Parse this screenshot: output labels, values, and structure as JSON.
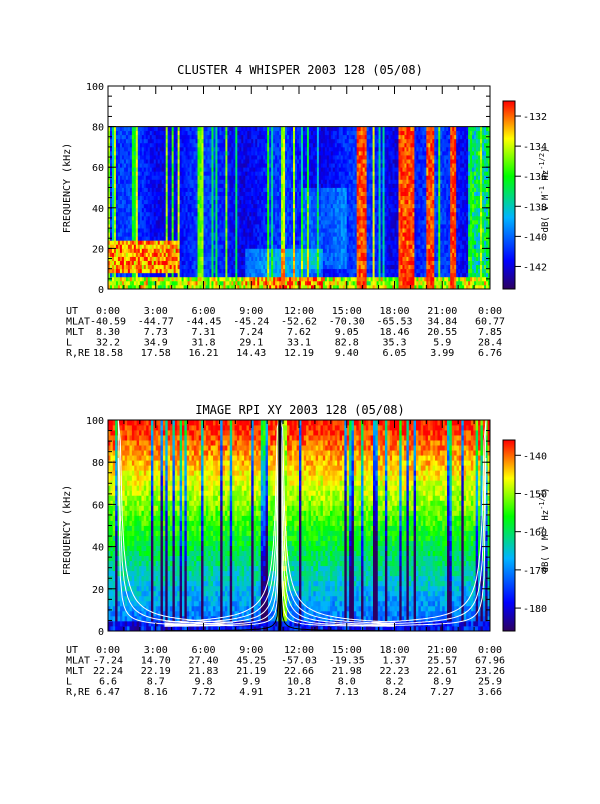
{
  "chart_data": [
    {
      "type": "heatmap",
      "title": "CLUSTER 4 WHISPER 2003 128 (05/08)",
      "ylabel": "FREQUENCY (kHz)",
      "ylim": [
        0,
        100
      ],
      "yticks": [
        "0",
        "20",
        "40",
        "60",
        "80",
        "100"
      ],
      "data_freq_max_khz": 80,
      "colorbar": {
        "label_prefix": "dB( V M",
        "label_exp1": "-1",
        "label_mid": " Hz",
        "label_exp2": "-1/2",
        "label_suffix": ")",
        "range": [
          -143.5,
          -131
        ],
        "ticks": [
          "-132",
          "-134",
          "-136",
          "-138",
          "-140",
          "-142"
        ],
        "tick_values": [
          -132,
          -134,
          -136,
          -138,
          -140,
          -142
        ]
      },
      "ephemeris": {
        "labels": [
          "UT",
          "MLAT",
          "MLT",
          "L",
          "R,RE"
        ],
        "ut": [
          "0:00",
          "3:00",
          "6:00",
          "9:00",
          "12:00",
          "15:00",
          "18:00",
          "21:00",
          "0:00"
        ],
        "mlat": [
          "-40.59",
          "-44.77",
          "-44.45",
          "-45.24",
          "-52.62",
          "-70.30",
          "-65.53",
          "34.84",
          "60.77"
        ],
        "mlt": [
          "8.30",
          "7.73",
          "7.31",
          "7.24",
          "7.62",
          "9.05",
          "18.46",
          "20.55",
          "7.85"
        ],
        "l": [
          "32.2",
          "34.9",
          "31.8",
          "29.1",
          "33.1",
          "82.8",
          "35.3",
          "5.9",
          "28.4"
        ],
        "r_re": [
          "18.58",
          "17.58",
          "16.21",
          "14.43",
          "12.19",
          "9.40",
          "6.05",
          "3.99",
          "6.76"
        ]
      },
      "time_hours": [
        0,
        24
      ],
      "colors": [
        "#2d0060",
        "#0000ff",
        "#00b4ff",
        "#00ff00",
        "#ffff00",
        "#ff0000"
      ]
    },
    {
      "type": "heatmap",
      "title": "IMAGE RPI XY 2003 128 (05/08)",
      "ylabel": "FREQUENCY (kHz)",
      "ylim": [
        0,
        100
      ],
      "yticks": [
        "0",
        "20",
        "40",
        "60",
        "80",
        "100"
      ],
      "colorbar": {
        "label_prefix": "dB( V M",
        "label_exp1": "-1",
        "label_mid": " Hz",
        "label_exp2": "-1/2",
        "label_suffix": ")",
        "range": [
          -186,
          -136
        ],
        "ticks": [
          "-140",
          "-150",
          "-160",
          "-170",
          "-180"
        ],
        "tick_values": [
          -140,
          -150,
          -160,
          -170,
          -180
        ]
      },
      "ephemeris": {
        "labels": [
          "UT",
          "MLAT",
          "MLT",
          "L",
          "R,RE"
        ],
        "ut": [
          "0:00",
          "3:00",
          "6:00",
          "9:00",
          "12:00",
          "15:00",
          "18:00",
          "21:00",
          "0:00"
        ],
        "mlat": [
          "-7.24",
          "14.70",
          "27.40",
          "45.25",
          "-57.03",
          "-19.35",
          "1.37",
          "25.57",
          "67.96"
        ],
        "mlt": [
          "22.24",
          "22.19",
          "21.83",
          "21.19",
          "22.66",
          "21.98",
          "22.23",
          "22.61",
          "23.26"
        ],
        "l": [
          "6.6",
          "8.7",
          "9.8",
          "9.9",
          "10.8",
          "8.0",
          "8.2",
          "8.9",
          "25.9"
        ],
        "r_re": [
          "6.47",
          "8.16",
          "7.72",
          "4.91",
          "3.21",
          "7.13",
          "8.24",
          "7.27",
          "3.66"
        ]
      },
      "time_hours": [
        0,
        24
      ],
      "colors": [
        "#2d0060",
        "#0000ff",
        "#00b4ff",
        "#00ff00",
        "#ffff00",
        "#ff0000"
      ]
    }
  ]
}
